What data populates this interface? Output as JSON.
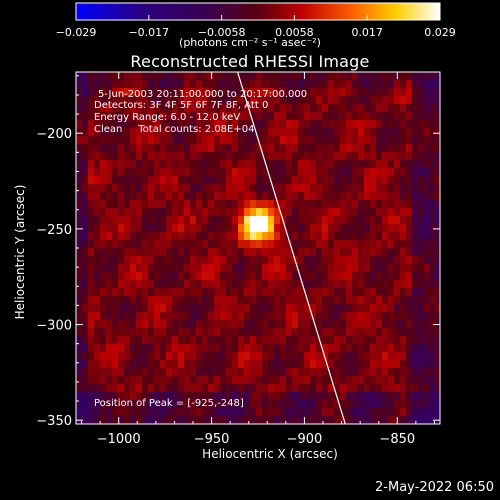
{
  "colorbar": {
    "ticks": [
      "-0.029",
      "-0.017",
      "-0.0058",
      "0.0058",
      "0.017",
      "0.029"
    ],
    "unit_label": "(photons cm⁻² s⁻¹ asec⁻²)"
  },
  "chart_data": {
    "type": "heatmap",
    "title": "Reconstructed RHESSI Image",
    "xlabel": "Heliocentric X (arcsec)",
    "ylabel": "Heliocentric Y (arcsec)",
    "xlim": [
      -1023,
      -827
    ],
    "ylim": [
      -352,
      -168
    ],
    "xticks": [
      -1000,
      -950,
      -900,
      -850
    ],
    "yticks": [
      -200,
      -250,
      -300,
      -350
    ],
    "xtick_labels": [
      "−1000",
      "−950",
      "−900",
      "−850"
    ],
    "ytick_labels": [
      "−200",
      "−250",
      "−300",
      "−350"
    ],
    "value_range": [
      -0.029,
      0.029
    ],
    "colormap": "rainbow-blue-purple-red-yellow-white",
    "peak": {
      "x": -925,
      "y": -248
    },
    "limb_line": [
      [
        -936,
        -168
      ],
      [
        -878,
        -352
      ]
    ],
    "annotations": [
      "5-Jun-2003 20:11:00.000 to 20:17:00.000",
      "Detectors: 3F 4F 5F 6F 7F 8F, Att 0",
      "Energy Range: 6.0 - 12.0 keV",
      "Clean     Total counts: 2.08E+04"
    ],
    "peak_label": "Position of Peak = [-925,-248]"
  },
  "footer": {
    "date": "2-May-2022 06:50"
  }
}
